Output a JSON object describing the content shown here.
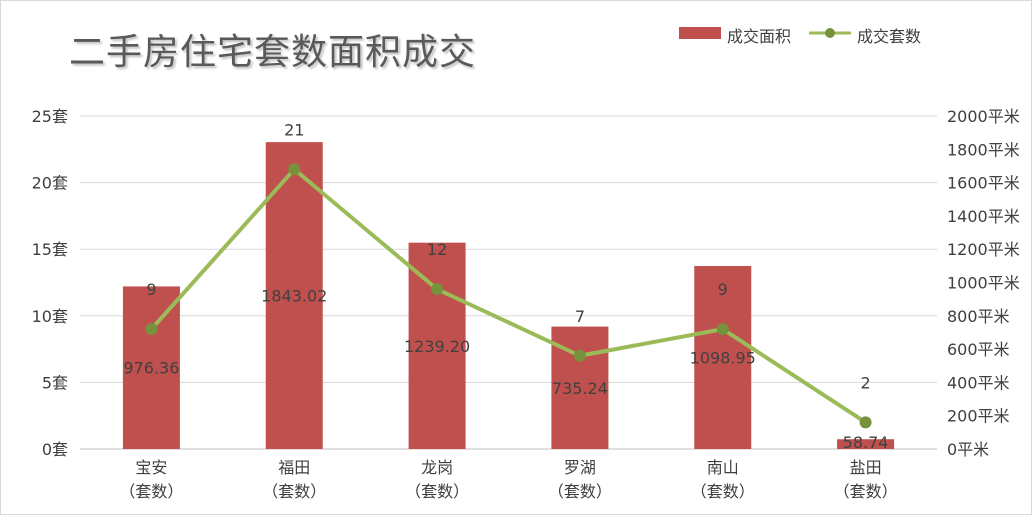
{
  "chart_data": {
    "type": "bar",
    "title": "二手房住宅套数面积成交",
    "categories": [
      "宝安\n（套数）",
      "福田\n（套数）",
      "龙岗\n（套数）",
      "罗湖\n（套数）",
      "南山\n（套数）",
      "盐田\n（套数）"
    ],
    "series": [
      {
        "name": "成交面积",
        "type": "bar",
        "axis": "right",
        "values": [
          976.36,
          1843.02,
          1239.2,
          735.24,
          1098.95,
          58.74
        ],
        "labels": [
          "976.36",
          "1843.02",
          "1239.20",
          "735.24",
          "1098.95",
          "58.74"
        ],
        "color": "#c0504d"
      },
      {
        "name": "成交套数",
        "type": "line",
        "axis": "left",
        "values": [
          9,
          21,
          12,
          7,
          9,
          2
        ],
        "labels": [
          "9",
          "21",
          "12",
          "7",
          "9",
          "2"
        ],
        "color": "#9bbb59"
      }
    ],
    "left_axis": {
      "ylim": [
        0,
        25
      ],
      "ticks": [
        "0套",
        "5套",
        "10套",
        "15套",
        "20套",
        "25套"
      ]
    },
    "right_axis": {
      "ylim": [
        0,
        2000
      ],
      "ticks": [
        "0平米",
        "200平米",
        "400平米",
        "600平米",
        "800平米",
        "1000平米",
        "1200平米",
        "1400平米",
        "1600平米",
        "1800平米",
        "2000平米"
      ]
    },
    "grid": true,
    "legend_position": "top-right",
    "axis_color": "#595959",
    "grid_color": "#d9d9d9"
  }
}
